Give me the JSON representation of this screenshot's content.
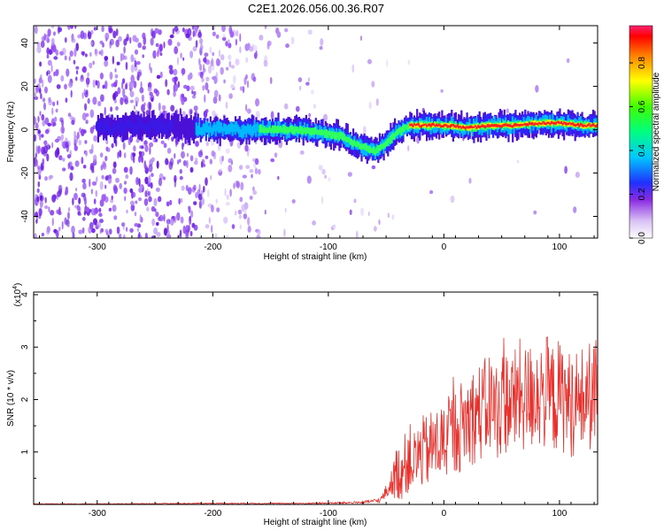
{
  "title": "C2E1.2026.056.00.36.R07",
  "chart_data": [
    {
      "type": "heatmap",
      "name": "spectrogram",
      "xlabel": "Height of straight line (km)",
      "ylabel": "Frequency (Hz)",
      "xlim": [
        -355,
        133
      ],
      "ylim": [
        -50,
        48
      ],
      "xticks": [
        -300,
        -200,
        -100,
        0,
        100
      ],
      "xtick_labels": [
        "-300",
        "-200",
        "-100",
        "0",
        "100"
      ],
      "yticks": [
        -40,
        -20,
        0,
        20,
        40
      ],
      "ytick_labels": [
        "-40",
        "-20",
        "0",
        "20",
        "40"
      ],
      "ridge": {
        "x": [
          -290,
          -260,
          -230,
          -200,
          -170,
          -150,
          -130,
          -110,
          -90,
          -80,
          -70,
          -60,
          -50,
          -40,
          -30,
          -20,
          0,
          20,
          40,
          60,
          80,
          100,
          120,
          133
        ],
        "y": [
          1,
          2,
          1,
          0,
          0,
          0,
          0,
          -1,
          -3,
          -6,
          -8,
          -10,
          -6,
          -1,
          2,
          2,
          2,
          1,
          2,
          2,
          3,
          3,
          2,
          2
        ]
      },
      "colorbar": {
        "label": "Normalized spectral amplitude",
        "range": [
          0,
          0.97
        ],
        "ticks": [
          0,
          0.2,
          0.4,
          0.6,
          0.8
        ],
        "tick_labels": [
          "0.0",
          "0.2",
          "0.4",
          "0.6",
          "0.8"
        ]
      }
    },
    {
      "type": "line",
      "name": "snr",
      "xlabel": "Height of straight line (km)",
      "ylabel": "SNR (10 * v/v)",
      "y_scale_label": "(x10",
      "y_scale_exp": "4",
      "y_scale_close": ")",
      "xlim": [
        -355,
        133
      ],
      "ylim": [
        0,
        4.05
      ],
      "xticks": [
        -300,
        -200,
        -100,
        0,
        100
      ],
      "xtick_labels": [
        "-300",
        "-200",
        "-100",
        "0",
        "100"
      ],
      "yticks": [
        1,
        2,
        3,
        4
      ],
      "ytick_labels": [
        "1",
        "2",
        "3",
        "4"
      ],
      "series": [
        {
          "name": "SNR",
          "color": "#e8302c",
          "x": [
            -355,
            -300,
            -200,
            -120,
            -90,
            -70,
            -55,
            -48,
            -42,
            -35,
            -30,
            -25,
            -20,
            -15,
            -10,
            -5,
            0,
            5,
            10,
            15,
            20,
            25,
            30,
            35,
            40,
            45,
            50,
            55,
            60,
            65,
            70,
            75,
            80,
            85,
            90,
            95,
            100,
            105,
            110,
            115,
            120,
            125,
            133
          ],
          "y": [
            0.01,
            0.01,
            0.02,
            0.02,
            0.03,
            0.04,
            0.08,
            0.3,
            0.55,
            0.7,
            0.9,
            0.8,
            1.0,
            1.0,
            1.1,
            1.15,
            1.2,
            1.3,
            1.4,
            1.5,
            1.6,
            1.7,
            1.75,
            1.8,
            1.95,
            1.8,
            1.9,
            2.0,
            1.9,
            2.1,
            2.0,
            2.05,
            2.2,
            2.1,
            2.15,
            2.0,
            2.1,
            2.0,
            1.9,
            1.95,
            2.0,
            2.05,
            2.1
          ]
        }
      ]
    }
  ]
}
